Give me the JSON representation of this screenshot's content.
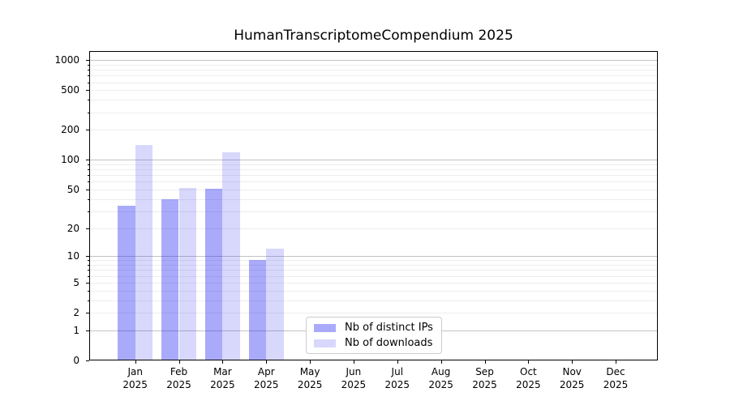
{
  "chart_data": {
    "type": "bar",
    "title": "HumanTranscriptomeCompendium 2025",
    "categories": [
      "Jan",
      "Feb",
      "Mar",
      "Apr",
      "May",
      "Jun",
      "Jul",
      "Aug",
      "Sep",
      "Oct",
      "Nov",
      "Dec"
    ],
    "category_year": "2025",
    "series": [
      {
        "name": "Nb of distinct IPs",
        "color": "rgba(20,20,240,0.36)",
        "values": [
          34,
          40,
          51,
          9,
          null,
          null,
          null,
          null,
          null,
          null,
          null,
          null
        ]
      },
      {
        "name": "Nb of downloads",
        "color": "rgba(20,20,240,0.165)",
        "values": [
          140,
          52,
          120,
          12,
          null,
          null,
          null,
          null,
          null,
          null,
          null,
          null
        ]
      }
    ],
    "yaxis": {
      "scale": "log1p",
      "ymax": 1230,
      "tick_values": [
        0,
        1,
        2,
        5,
        10,
        20,
        50,
        100,
        200,
        500,
        1000
      ],
      "major_grid_values": [
        1,
        10,
        100,
        1000
      ],
      "minor_grid_values": [
        2,
        3,
        4,
        5,
        6,
        7,
        8,
        9,
        20,
        30,
        40,
        50,
        60,
        70,
        80,
        90,
        200,
        300,
        400,
        500,
        600,
        700,
        800,
        900
      ]
    },
    "xaxis": {
      "label_format": "month-over-year"
    },
    "grid": "horizontal",
    "legend_position": "lower-center",
    "colors": {
      "major_grid": "#c3c3c3",
      "minor_grid": "#ededed",
      "axis": "#000000",
      "text": "#000000",
      "background": "#ffffff",
      "legend_border": "#cccccc"
    }
  }
}
